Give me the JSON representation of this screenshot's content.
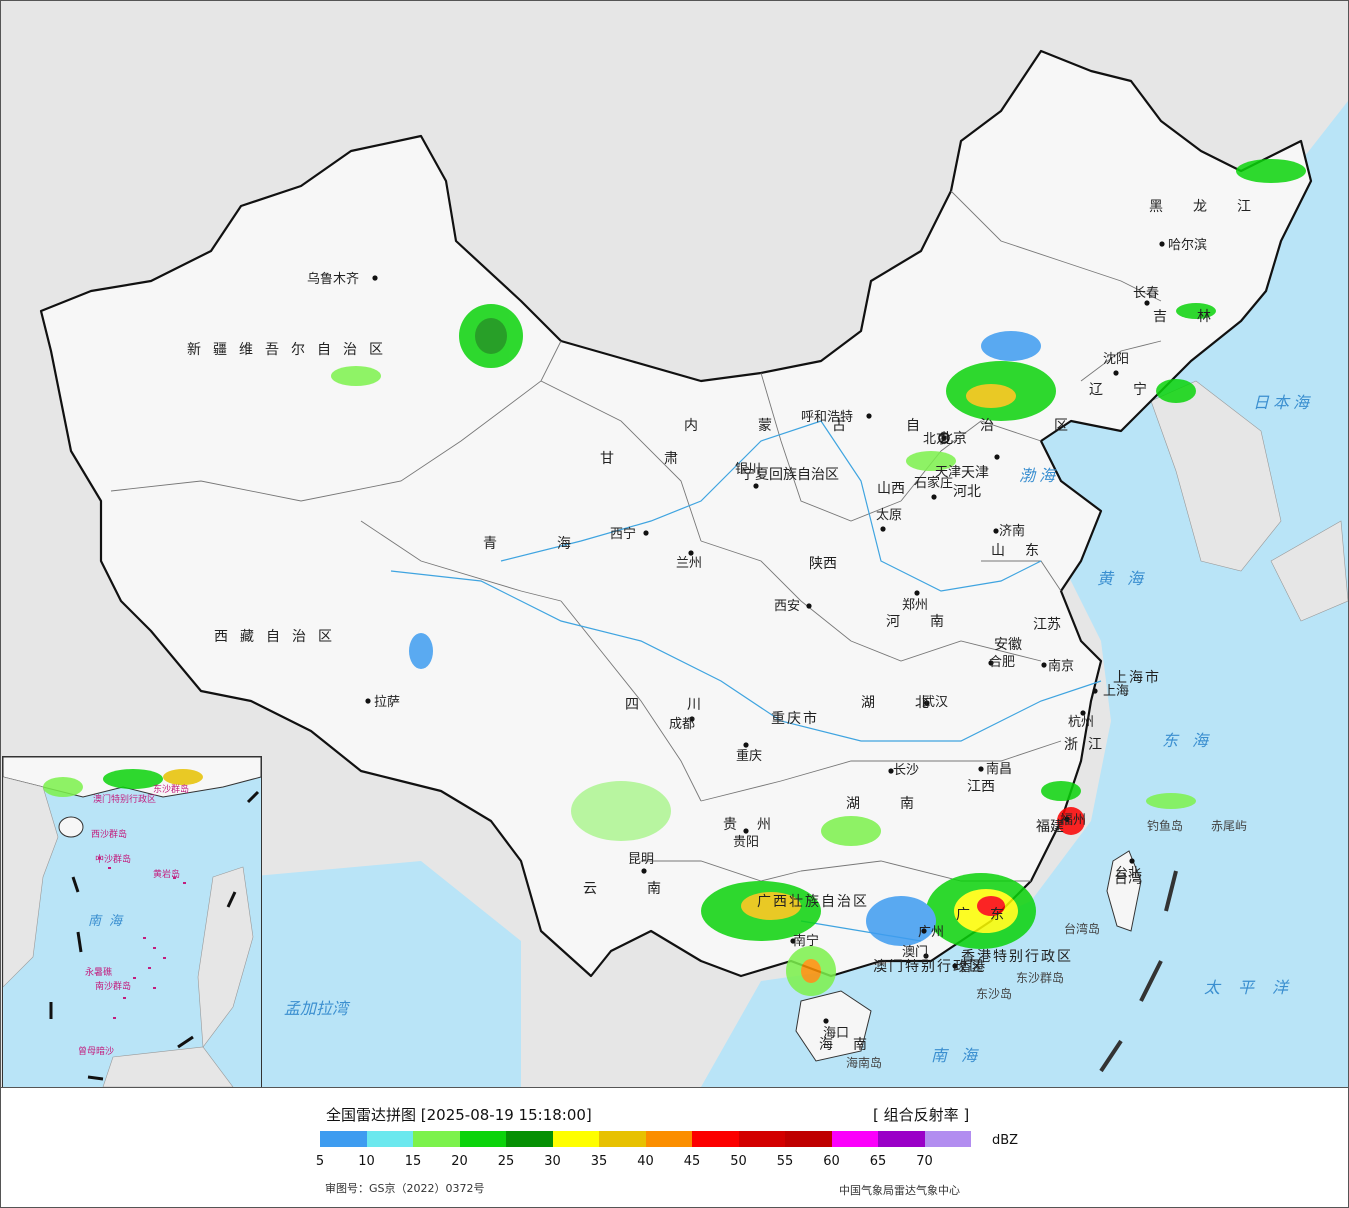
{
  "legend": {
    "title": "全国雷达拼图 [2025-08-19 15:18:00]",
    "product": "[ 组合反射率 ]",
    "unit": "dBZ",
    "approval_number": "审图号：GS京（2022）0372号",
    "source": "中国气象局雷达气象中心",
    "colors": [
      "#3e9cf0",
      "#6be8ee",
      "#7cf24c",
      "#0bd30b",
      "#059004",
      "#fefe00",
      "#e7c101",
      "#fb8e00",
      "#fc0000",
      "#d30000",
      "#bf0000",
      "#fb00fb",
      "#9a00c7",
      "#b28df0"
    ],
    "ticks": [
      "5",
      "10",
      "15",
      "20",
      "25",
      "30",
      "35",
      "40",
      "45",
      "50",
      "55",
      "60",
      "65",
      "70"
    ]
  },
  "provinces": [
    {
      "name": "新疆维吾尔自治区"
    },
    {
      "name": "西藏自治区"
    },
    {
      "name": "青海"
    },
    {
      "name": "甘肃"
    },
    {
      "name": "内蒙古自治区"
    },
    {
      "name": "黑龙江"
    },
    {
      "name": "吉林"
    },
    {
      "name": "辽宁"
    },
    {
      "name": "四川"
    },
    {
      "name": "云南"
    },
    {
      "name": "陕西"
    },
    {
      "name": "山西"
    },
    {
      "name": "河北"
    },
    {
      "name": "山东"
    },
    {
      "name": "河南"
    },
    {
      "name": "湖北"
    },
    {
      "name": "湖南"
    },
    {
      "name": "江西"
    },
    {
      "name": "安徽"
    },
    {
      "name": "江苏"
    },
    {
      "name": "浙江"
    },
    {
      "name": "福建"
    },
    {
      "name": "广东"
    },
    {
      "name": "广西壮族自治区"
    },
    {
      "name": "贵州"
    },
    {
      "name": "重庆市"
    },
    {
      "name": "宁夏回族自治区"
    },
    {
      "name": "海南"
    },
    {
      "name": "台湾"
    },
    {
      "name": "上海市"
    },
    {
      "name": "天津"
    },
    {
      "name": "北京"
    },
    {
      "name": "香港特别行政区"
    },
    {
      "name": "澳门特别行政区"
    }
  ],
  "cities": [
    {
      "name": "乌鲁木齐"
    },
    {
      "name": "拉萨"
    },
    {
      "name": "西宁"
    },
    {
      "name": "兰州"
    },
    {
      "name": "银川"
    },
    {
      "name": "呼和浩特"
    },
    {
      "name": "哈尔滨"
    },
    {
      "name": "长春"
    },
    {
      "name": "沈阳"
    },
    {
      "name": "北京"
    },
    {
      "name": "天津"
    },
    {
      "name": "石家庄"
    },
    {
      "name": "太原"
    },
    {
      "name": "济南"
    },
    {
      "name": "郑州"
    },
    {
      "name": "西安"
    },
    {
      "name": "成都"
    },
    {
      "name": "重庆"
    },
    {
      "name": "武汉"
    },
    {
      "name": "合肥"
    },
    {
      "name": "南京"
    },
    {
      "name": "上海"
    },
    {
      "name": "杭州"
    },
    {
      "name": "南昌"
    },
    {
      "name": "长沙"
    },
    {
      "name": "贵阳"
    },
    {
      "name": "昆明"
    },
    {
      "name": "南宁"
    },
    {
      "name": "广州"
    },
    {
      "name": "福州"
    },
    {
      "name": "台北"
    },
    {
      "name": "海口"
    },
    {
      "name": "香港"
    },
    {
      "name": "澳门"
    }
  ],
  "seas": [
    {
      "name": "日本海"
    },
    {
      "name": "渤海"
    },
    {
      "name": "黄海"
    },
    {
      "name": "东海"
    },
    {
      "name": "太平洋"
    },
    {
      "name": "南海"
    },
    {
      "name": "孟加拉湾"
    }
  ],
  "islands": [
    {
      "name": "钓鱼岛"
    },
    {
      "name": "赤尾屿"
    },
    {
      "name": "台湾岛"
    },
    {
      "name": "东沙群岛"
    },
    {
      "name": "东沙岛"
    },
    {
      "name": "海南岛"
    }
  ],
  "inset_labels": [
    {
      "name": "西沙群岛"
    },
    {
      "name": "中沙群岛"
    },
    {
      "name": "黄岩岛"
    },
    {
      "name": "南海"
    },
    {
      "name": "南沙群岛"
    },
    {
      "name": "永暑礁"
    },
    {
      "name": "曾母暗沙"
    },
    {
      "name": "东沙群岛"
    },
    {
      "name": "澳门特别行政区"
    }
  ]
}
